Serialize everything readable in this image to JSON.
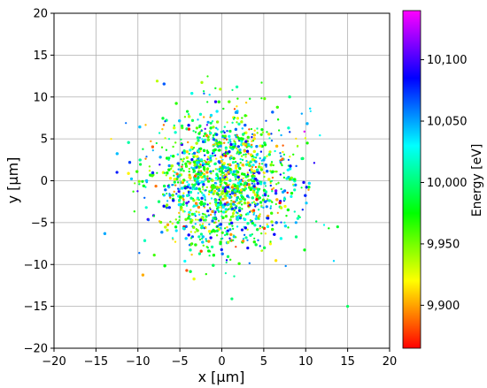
{
  "chart_data": {
    "type": "scatter",
    "title": "",
    "xlabel": "x [µm]",
    "ylabel": "y [µm]",
    "xlim": [
      -20,
      20
    ],
    "ylim": [
      -20,
      20
    ],
    "xticks": [
      -20,
      -15,
      -10,
      -5,
      0,
      5,
      10,
      15,
      20
    ],
    "yticks": [
      -20,
      -15,
      -10,
      -5,
      0,
      5,
      10,
      15,
      20
    ],
    "xtick_labels": [
      "−20",
      "−15",
      "−10",
      "−5",
      "0",
      "5",
      "10",
      "15",
      "20"
    ],
    "ytick_labels": [
      "−20",
      "−15",
      "−10",
      "−5",
      "0",
      "5",
      "10",
      "15",
      "20"
    ],
    "grid": true,
    "distribution": {
      "shape": "gaussian-disk",
      "center": [
        0,
        0
      ],
      "sigma_um": 4.2,
      "approx_points": 2600
    },
    "colorbar": {
      "label": "Energy [eV]",
      "min": 9865,
      "max": 10140,
      "ticks": [
        9900,
        9950,
        10000,
        10050,
        10100
      ],
      "tick_labels": [
        "9,900",
        "9,950",
        "10,000",
        "10,050",
        "10,100"
      ],
      "colormap": "gist_rainbow",
      "colors": [
        "#ff0000",
        "#ff8000",
        "#ffff00",
        "#80ff00",
        "#00ff00",
        "#00ff80",
        "#00ffff",
        "#0080ff",
        "#0000ff",
        "#8000ff",
        "#ff00ff"
      ]
    },
    "sample_points": [
      {
        "x": -2.1,
        "y": 1.4,
        "energy": 9975
      },
      {
        "x": 1.8,
        "y": -2.3,
        "energy": 10010
      },
      {
        "x": -3.5,
        "y": -4.0,
        "energy": 9960
      },
      {
        "x": 4.2,
        "y": 3.1,
        "energy": 10040
      },
      {
        "x": 0.6,
        "y": 0.2,
        "energy": 9920
      },
      {
        "x": -6.3,
        "y": 2.7,
        "energy": 9990
      },
      {
        "x": 7.5,
        "y": -1.2,
        "energy": 10060
      },
      {
        "x": -1.0,
        "y": 6.4,
        "energy": 9945
      },
      {
        "x": 2.9,
        "y": -6.8,
        "energy": 10005
      },
      {
        "x": -9.0,
        "y": -3.2,
        "energy": 10020
      },
      {
        "x": 10.2,
        "y": 4.5,
        "energy": 9970
      },
      {
        "x": -4.4,
        "y": -9.6,
        "energy": 10030
      },
      {
        "x": 5.1,
        "y": 9.8,
        "energy": 9955
      },
      {
        "x": -12.5,
        "y": 1.0,
        "energy": 10080
      },
      {
        "x": 13.8,
        "y": -5.5,
        "energy": 9985
      },
      {
        "x": 1.2,
        "y": -14.1,
        "energy": 10000
      },
      {
        "x": -7.7,
        "y": 11.9,
        "energy": 9935
      },
      {
        "x": 15.0,
        "y": -15.0,
        "energy": 9995
      }
    ]
  }
}
